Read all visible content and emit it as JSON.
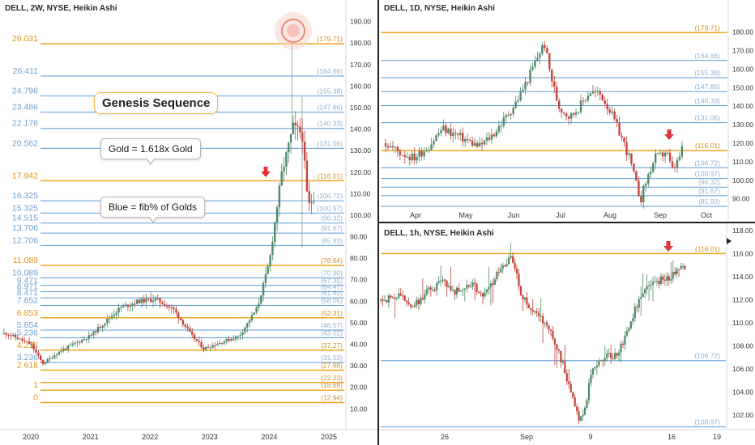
{
  "colors": {
    "gold": "#f2a51f",
    "blue": "#5b9bd5",
    "blue_text": "#8fb3d6",
    "up_candle": "#4f8a68",
    "down_candle": "#c0453c",
    "arrow": "#e0333a",
    "divider": "#202020"
  },
  "left_chart": {
    "title": "DELL, 2W, NYSE, Heikin Ashi",
    "y_ticks": [
      "190.00",
      "180.00",
      "170.00",
      "160.00",
      "150.00",
      "140.00",
      "130.00",
      "120.00",
      "110.00",
      "100.00",
      "90.00",
      "80.00",
      "70.00",
      "60.00",
      "50.00",
      "40.00",
      "30.00",
      "20.00",
      "10.00"
    ],
    "x_ticks": [
      "2020",
      "2021",
      "2022",
      "2023",
      "2024",
      "2025"
    ],
    "levels": [
      {
        "left": "29.031",
        "right": "(179.71)",
        "price": 179.71,
        "kind": "gold"
      },
      {
        "left": "26.411",
        "right": "(164.66)",
        "price": 164.66,
        "kind": "blue"
      },
      {
        "left": "24.796",
        "right": "(155.38)",
        "price": 155.38,
        "kind": "blue"
      },
      {
        "left": "23.486",
        "right": "(147.86)",
        "price": 147.86,
        "kind": "blue"
      },
      {
        "left": "22.176",
        "right": "(140.33)",
        "price": 140.33,
        "kind": "blue"
      },
      {
        "left": "20.562",
        "right": "(131.06)",
        "price": 131.06,
        "kind": "blue"
      },
      {
        "left": "17.942",
        "right": "(116.01)",
        "price": 116.01,
        "kind": "gold"
      },
      {
        "left": "16.325",
        "right": "(106.72)",
        "price": 106.72,
        "kind": "blue"
      },
      {
        "left": "15.325",
        "right": "(100.97)",
        "price": 100.97,
        "kind": "blue"
      },
      {
        "left": "14.515",
        "right": "(96.32)",
        "price": 96.32,
        "kind": "blue"
      },
      {
        "left": "13.706",
        "right": "(91.67)",
        "price": 91.67,
        "kind": "blue"
      },
      {
        "left": "12.706",
        "right": "(85.93)",
        "price": 85.93,
        "kind": "blue"
      },
      {
        "left": "11.089",
        "right": "(76.64)",
        "price": 76.64,
        "kind": "gold"
      },
      {
        "left": "10.089",
        "right": "(70.90)",
        "price": 70.9,
        "kind": "blue"
      },
      {
        "left": "9.471",
        "right": "(67.35)",
        "price": 67.35,
        "kind": "blue"
      },
      {
        "left": "8.971",
        "right": "(64.47)",
        "price": 64.47,
        "kind": "blue"
      },
      {
        "left": "8.471",
        "right": "(61.60)",
        "price": 61.6,
        "kind": "blue"
      },
      {
        "left": "7.852",
        "right": "(58.05)",
        "price": 58.05,
        "kind": "blue"
      },
      {
        "left": "6.853",
        "right": "(52.31)",
        "price": 52.31,
        "kind": "gold"
      },
      {
        "left": "5.854",
        "right": "(46.57)",
        "price": 46.57,
        "kind": "blue"
      },
      {
        "left": "5.236",
        "right": "(43.02)",
        "price": 43.02,
        "kind": "blue"
      },
      {
        "left": "4.236",
        "right": "(37.27)",
        "price": 37.27,
        "kind": "gold"
      },
      {
        "left": "3.236",
        "right": "(31.53)",
        "price": 31.53,
        "kind": "blue"
      },
      {
        "left": "2.618",
        "right": "(27.98)",
        "price": 27.98,
        "kind": "gold"
      },
      {
        "left": "",
        "right": "(22.23)",
        "price": 22.23,
        "kind": "gold"
      },
      {
        "left": "1",
        "right": "(18.68)",
        "price": 18.68,
        "kind": "gold"
      },
      {
        "left": "0",
        "right": "(12.94)",
        "price": 12.94,
        "kind": "gold"
      }
    ],
    "annotations": {
      "genesis": "Genesis Sequence",
      "gold_note": "Gold = 1.618x Gold",
      "blue_note": "Blue = fib% of Golds"
    }
  },
  "top_right_chart": {
    "title": "DELL, 1D, NYSE, Heikin Ashi",
    "y_ticks": [
      "180.00",
      "170.00",
      "160.00",
      "150.00",
      "140.00",
      "130.00",
      "120.00",
      "110.00",
      "100.00",
      "90.00"
    ],
    "x_ticks": [
      "Apr",
      "May",
      "Jun",
      "Jul",
      "Aug",
      "Sep",
      "Oct"
    ],
    "levels": [
      {
        "right": "(179.71)",
        "price": 179.71,
        "kind": "gold"
      },
      {
        "right": "(164.66)",
        "price": 164.66,
        "kind": "blue"
      },
      {
        "right": "(155.38)",
        "price": 155.38,
        "kind": "blue"
      },
      {
        "right": "(147.86)",
        "price": 147.86,
        "kind": "blue"
      },
      {
        "right": "(140.33)",
        "price": 140.33,
        "kind": "blue"
      },
      {
        "right": "(131.06)",
        "price": 131.06,
        "kind": "blue"
      },
      {
        "right": "(116.01)",
        "price": 116.01,
        "kind": "gold"
      },
      {
        "right": "(106.72)",
        "price": 106.72,
        "kind": "blue"
      },
      {
        "right": "(100.97)",
        "price": 100.97,
        "kind": "blue"
      },
      {
        "right": "(96.32)",
        "price": 96.32,
        "kind": "blue"
      },
      {
        "right": "(91.67)",
        "price": 91.67,
        "kind": "blue"
      },
      {
        "right": "(85.93)",
        "price": 85.93,
        "kind": "blue"
      }
    ]
  },
  "bottom_right_chart": {
    "title": "DELL, 1h, NYSE, Heikin Ashi",
    "y_ticks": [
      "118.00",
      "116.00",
      "114.00",
      "112.00",
      "110.00",
      "108.00",
      "106.00",
      "104.00",
      "102.00"
    ],
    "x_ticks": [
      "26",
      "Sep",
      "9",
      "16",
      "19"
    ],
    "levels": [
      {
        "right": "(116.01)",
        "price": 116.01,
        "kind": "gold"
      },
      {
        "right": "(106.72)",
        "price": 106.72,
        "kind": "blue"
      },
      {
        "right": "(100.97)",
        "price": 100.97,
        "kind": "blue"
      }
    ]
  },
  "chart_data": [
    {
      "type": "candlestick",
      "title": "DELL, 2W, NYSE, Heikin Ashi",
      "x": [
        "2020",
        "2021",
        "2022",
        "2023",
        "2024",
        "2025"
      ],
      "y_range": [
        5,
        195
      ],
      "close_path": [
        [
          2019.6,
          45
        ],
        [
          2020.0,
          40
        ],
        [
          2020.2,
          31
        ],
        [
          2020.5,
          37
        ],
        [
          2021.0,
          44
        ],
        [
          2021.5,
          57
        ],
        [
          2021.8,
          60
        ],
        [
          2022.1,
          61
        ],
        [
          2022.4,
          56
        ],
        [
          2022.7,
          44
        ],
        [
          2022.9,
          38
        ],
        [
          2023.2,
          41
        ],
        [
          2023.5,
          44
        ],
        [
          2023.8,
          57
        ],
        [
          2024.0,
          78
        ],
        [
          2024.2,
          118
        ],
        [
          2024.4,
          141
        ],
        [
          2024.55,
          138
        ],
        [
          2024.65,
          104
        ],
        [
          2024.75,
          108
        ]
      ],
      "reference_levels": [
        179.71,
        164.66,
        155.38,
        147.86,
        140.33,
        131.06,
        116.01,
        106.72,
        100.97,
        96.32,
        91.67,
        85.93,
        76.64,
        70.9,
        67.35,
        64.47,
        61.6,
        58.05,
        52.31,
        46.57,
        43.02,
        37.27,
        31.53,
        27.98,
        22.23,
        18.68,
        12.94
      ]
    },
    {
      "type": "candlestick",
      "title": "DELL, 1D, NYSE, Heikin Ashi",
      "x": [
        "Apr",
        "May",
        "Jun",
        "Jul",
        "Aug",
        "Sep",
        "Oct"
      ],
      "y_range": [
        82,
        196
      ],
      "close_path": [
        [
          0,
          120
        ],
        [
          0.05,
          115
        ],
        [
          0.1,
          112
        ],
        [
          0.15,
          118
        ],
        [
          0.2,
          128
        ],
        [
          0.28,
          122
        ],
        [
          0.33,
          118
        ],
        [
          0.38,
          125
        ],
        [
          0.42,
          133
        ],
        [
          0.46,
          142
        ],
        [
          0.5,
          154
        ],
        [
          0.54,
          168
        ],
        [
          0.56,
          174
        ],
        [
          0.58,
          158
        ],
        [
          0.61,
          140
        ],
        [
          0.65,
          134
        ],
        [
          0.69,
          141
        ],
        [
          0.72,
          148
        ],
        [
          0.76,
          146
        ],
        [
          0.79,
          138
        ],
        [
          0.83,
          124
        ],
        [
          0.86,
          112
        ],
        [
          0.89,
          94
        ],
        [
          0.9,
          90
        ],
        [
          0.92,
          100
        ],
        [
          0.95,
          112
        ],
        [
          0.97,
          113
        ],
        [
          0.99,
          116
        ],
        [
          1.01,
          105
        ],
        [
          1.03,
          110
        ],
        [
          1.05,
          118
        ]
      ],
      "reference_levels": [
        179.71,
        164.66,
        155.38,
        147.86,
        140.33,
        131.06,
        116.01,
        106.72,
        100.97,
        96.32,
        91.67,
        85.93
      ]
    },
    {
      "type": "candlestick",
      "title": "DELL, 1h, NYSE, Heikin Ashi",
      "x": [
        "26",
        "Sep",
        "9",
        "16",
        "19"
      ],
      "y_range": [
        100.6,
        119.0
      ],
      "close_path": [
        [
          0,
          112
        ],
        [
          0.05,
          112.3
        ],
        [
          0.1,
          111.5
        ],
        [
          0.14,
          112.8
        ],
        [
          0.18,
          113.5
        ],
        [
          0.22,
          112.7
        ],
        [
          0.26,
          113.4
        ],
        [
          0.3,
          112.3
        ],
        [
          0.33,
          113.8
        ],
        [
          0.36,
          115.2
        ],
        [
          0.38,
          115.6
        ],
        [
          0.41,
          112.2
        ],
        [
          0.44,
          111.0
        ],
        [
          0.47,
          110.2
        ],
        [
          0.5,
          108.7
        ],
        [
          0.53,
          106.2
        ],
        [
          0.55,
          103.8
        ],
        [
          0.575,
          101.8
        ],
        [
          0.59,
          102.2
        ],
        [
          0.61,
          106.0
        ],
        [
          0.64,
          107.0
        ],
        [
          0.68,
          107.2
        ],
        [
          0.71,
          108.8
        ],
        [
          0.74,
          111.5
        ],
        [
          0.78,
          113.3
        ],
        [
          0.82,
          113.8
        ],
        [
          0.85,
          114.2
        ],
        [
          0.88,
          115.0
        ]
      ],
      "reference_levels": [
        116.01,
        106.72,
        100.97
      ]
    }
  ]
}
